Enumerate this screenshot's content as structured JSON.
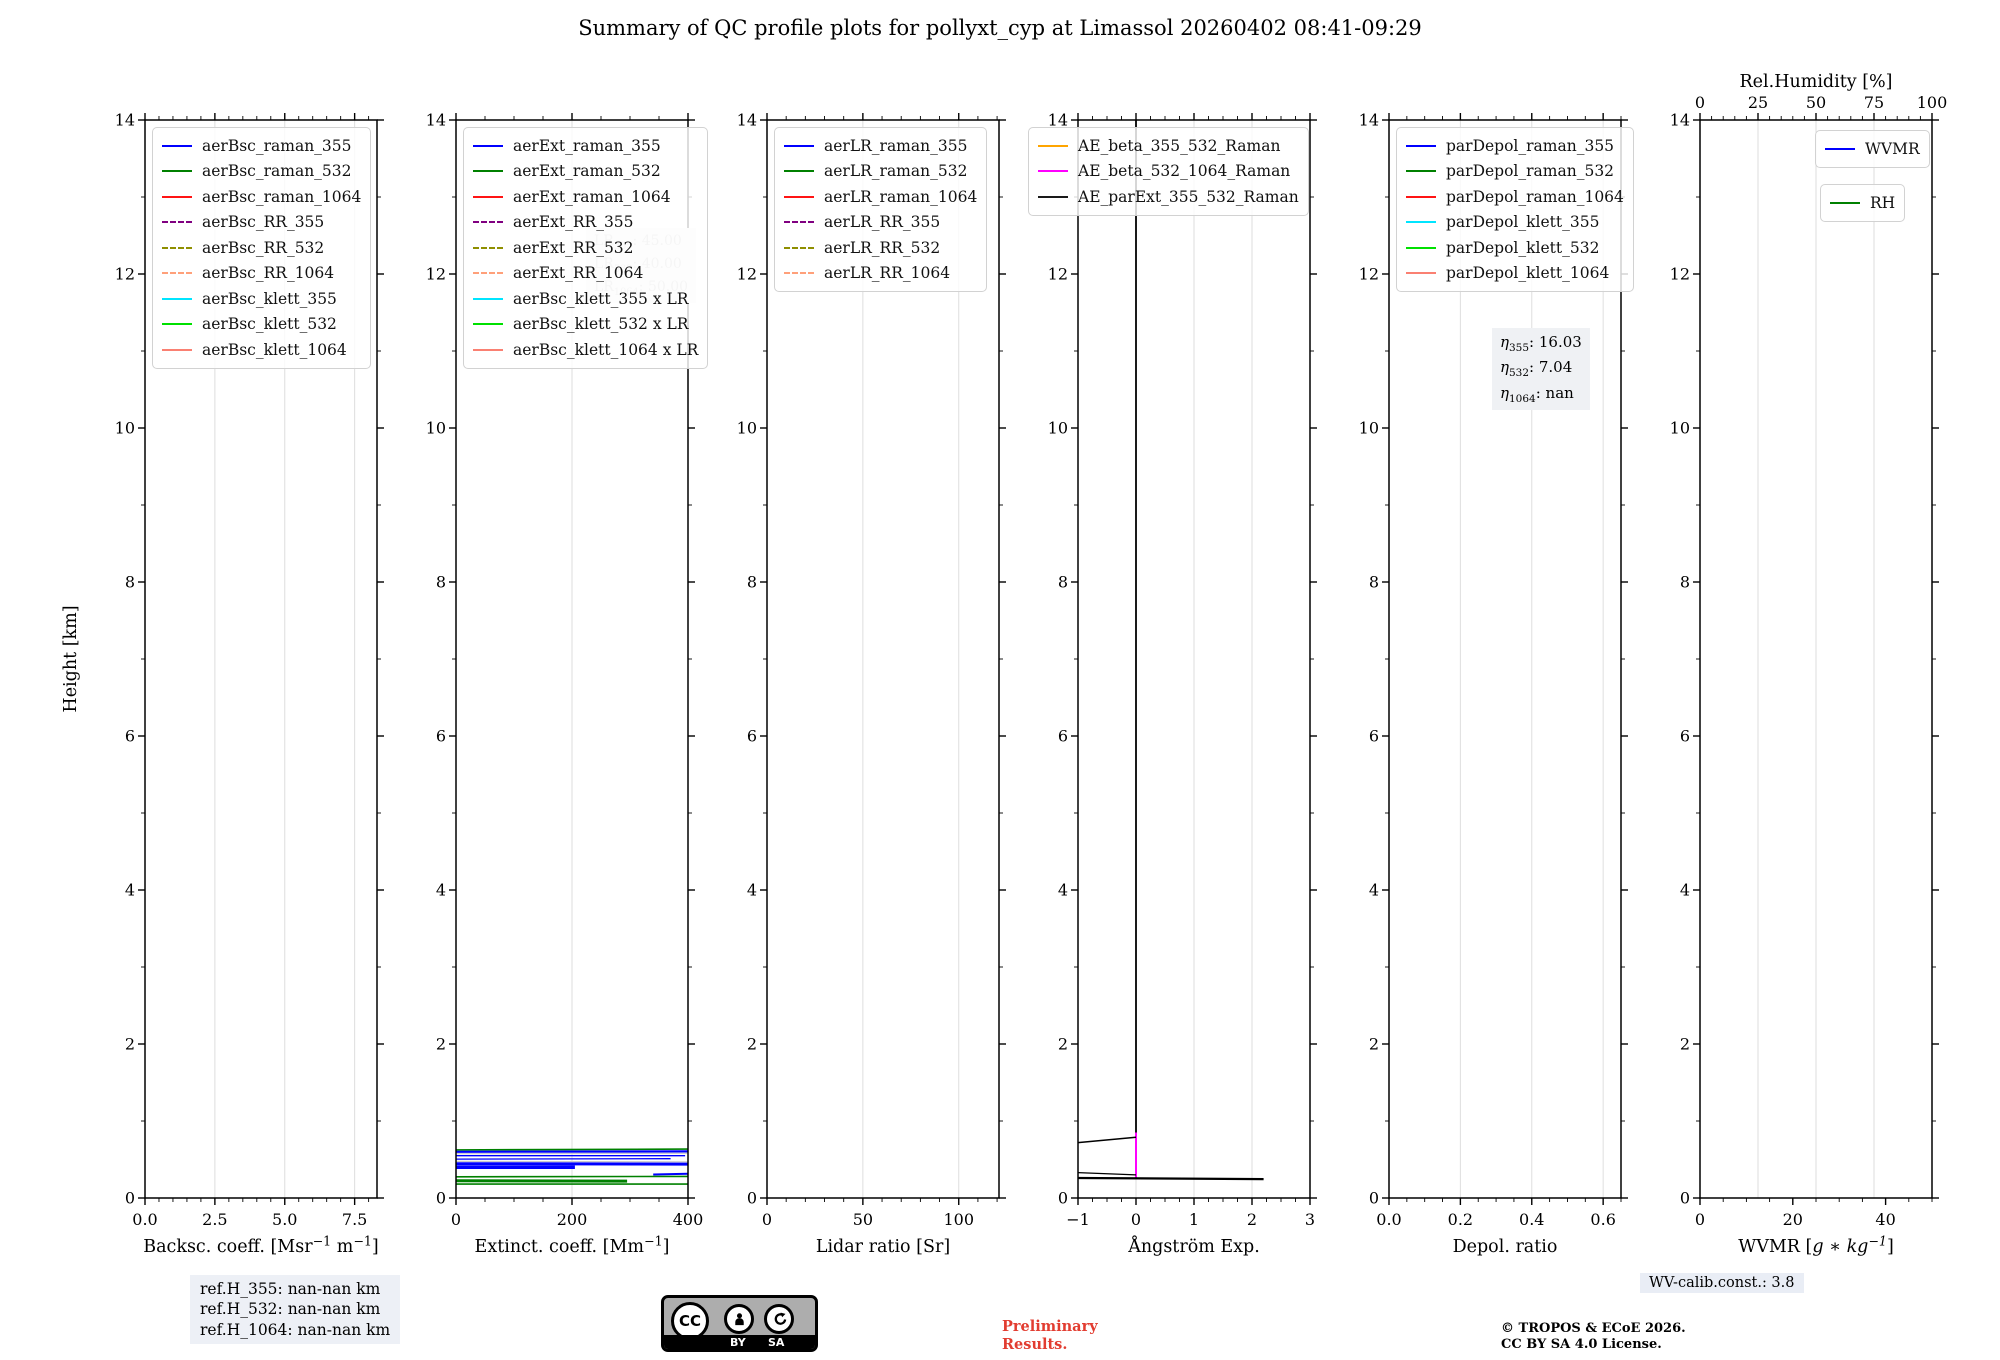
{
  "title": "Summary of QC profile plots for pollyxt_cyp at Limassol 20260402 08:41-09:29",
  "footer": {
    "ref_lines": [
      "ref.H_355: nan-nan km",
      "ref.H_532: nan-nan km",
      "ref.H_1064: nan-nan km"
    ],
    "cc": {
      "cc": "CC",
      "by": "BY",
      "sa": "SA"
    },
    "preliminary": [
      "Preliminary",
      "Results."
    ],
    "copyright": [
      "© TROPOS & ECoE 2026.",
      "CC BY SA 4.0 License."
    ],
    "wv_calib": "WV-calib.const.: 3.8"
  },
  "chart_data": {
    "type": "line",
    "title": "Summary of QC profile plots for pollyxt_cyp at Limassol 20260402 08:41-09:29",
    "ylabel": "Height [km]",
    "y_range": [
      0,
      14
    ],
    "y_ticks": [
      0,
      2,
      4,
      6,
      8,
      10,
      12,
      14
    ],
    "y_minor_step": 1,
    "grid_color": "#dedede",
    "panels": [
      {
        "name": "backscatter",
        "xlabel": [
          {
            "t": "Backsc. coeff. [Msr"
          },
          {
            "t": "−1",
            "sup": true
          },
          {
            "t": " m"
          },
          {
            "t": "−1",
            "sup": true
          },
          {
            "t": "]"
          }
        ],
        "x_range": [
          0,
          8.3
        ],
        "x_ticks": [
          {
            "v": 0,
            "l": "0.0"
          },
          {
            "v": 2.5,
            "l": "2.5"
          },
          {
            "v": 5,
            "l": "5.0"
          },
          {
            "v": 7.5,
            "l": "7.5"
          }
        ],
        "x_minor_step": 0.5,
        "legends": [
          {
            "x": 7,
            "y": 7,
            "entries": [
              {
                "label": "aerBsc_raman_355",
                "color": "#0000ff"
              },
              {
                "label": "aerBsc_raman_532",
                "color": "#008000"
              },
              {
                "label": "aerBsc_raman_1064",
                "color": "#ff1414"
              },
              {
                "label": "aerBsc_RR_355",
                "color": "#800080",
                "dash": true
              },
              {
                "label": "aerBsc_RR_532",
                "color": "#8f8f00",
                "dash": true
              },
              {
                "label": "aerBsc_RR_1064",
                "color": "#ffa07a",
                "dash": true
              },
              {
                "label": "aerBsc_klett_355",
                "color": "#00e5ff"
              },
              {
                "label": "aerBsc_klett_532",
                "color": "#00e000"
              },
              {
                "label": "aerBsc_klett_1064",
                "color": "#fa8072"
              }
            ]
          }
        ],
        "notes": [],
        "series": []
      },
      {
        "name": "extinction",
        "xlabel": [
          {
            "t": "Extinct. coeff. [Mm"
          },
          {
            "t": "−1",
            "sup": true
          },
          {
            "t": "]"
          }
        ],
        "x_range": [
          0,
          400
        ],
        "x_ticks": [
          {
            "v": 0,
            "l": "0"
          },
          {
            "v": 200,
            "l": "200"
          },
          {
            "v": 400,
            "l": "400"
          }
        ],
        "x_minor_step": 50,
        "legends": [
          {
            "x": 7,
            "y": 7,
            "entries": [
              {
                "label": "aerExt_raman_355",
                "color": "#0000ff"
              },
              {
                "label": "aerExt_raman_532",
                "color": "#008000"
              },
              {
                "label": "aerExt_raman_1064",
                "color": "#ff1414"
              },
              {
                "label": "aerExt_RR_355",
                "color": "#800080",
                "dash": true
              },
              {
                "label": "aerExt_RR_532",
                "color": "#8f8f00",
                "dash": true
              },
              {
                "label": "aerExt_RR_1064",
                "color": "#ffa07a",
                "dash": true
              },
              {
                "label": "aerBsc_klett_355 x LR",
                "color": "#00e5ff"
              },
              {
                "label": "aerBsc_klett_532 x LR",
                "color": "#00e000"
              },
              {
                "label": "aerBsc_klett_1064 x LR",
                "color": "#fa8072"
              }
            ]
          }
        ],
        "notes": [
          {
            "name": "lidar-ratio-note",
            "x": 130,
            "y": 108,
            "fs": 14,
            "color": "#c9c9c9",
            "bg": "#f4f4f4",
            "lines": [
              [
                {
                  "t": "LR"
                },
                {
                  "t": "355",
                  "sub": true
                },
                {
                  "t": ": 45.00"
                }
              ],
              [
                {
                  "t": "LR"
                },
                {
                  "t": "532",
                  "sub": true
                },
                {
                  "t": ": 40.00"
                }
              ],
              [
                {
                  "t": "LR"
                },
                {
                  "t": "1064",
                  "sub": true
                },
                {
                  "t": ": 50.00"
                }
              ]
            ]
          }
        ],
        "series": [
          {
            "c": "#c9c9c9",
            "w": 1.2,
            "pts": [
              [
                0,
                0.575
              ],
              [
                400,
                0.58
              ]
            ]
          },
          {
            "c": "#c9c9c9",
            "w": 1.2,
            "pts": [
              [
                0,
                0.475
              ],
              [
                400,
                0.47
              ]
            ]
          },
          {
            "c": "#008000",
            "w": 1.6,
            "pts": [
              [
                0,
                0.625
              ],
              [
                400,
                0.635
              ]
            ]
          },
          {
            "c": "#0000ff",
            "w": 2.2,
            "pts": [
              [
                0,
                0.6
              ],
              [
                400,
                0.605
              ]
            ]
          },
          {
            "c": "#0000ff",
            "w": 1.3,
            "pts": [
              [
                0,
                0.55
              ],
              [
                395,
                0.55
              ]
            ]
          },
          {
            "c": "#0000ff",
            "w": 1.3,
            "pts": [
              [
                0,
                0.505
              ],
              [
                370,
                0.51
              ]
            ]
          },
          {
            "c": "#0000ff",
            "w": 3,
            "pts": [
              [
                0,
                0.445
              ],
              [
                400,
                0.44
              ]
            ]
          },
          {
            "c": "#0000ff",
            "w": 3.5,
            "pts": [
              [
                0,
                0.4
              ],
              [
                205,
                0.4
              ]
            ]
          },
          {
            "c": "#0000ff",
            "w": 2,
            "pts": [
              [
                340,
                0.305
              ],
              [
                400,
                0.315
              ]
            ]
          },
          {
            "c": "#008000",
            "w": 1.6,
            "pts": [
              [
                0,
                0.275
              ],
              [
                400,
                0.28
              ]
            ]
          },
          {
            "c": "#008000",
            "w": 3,
            "pts": [
              [
                0,
                0.225
              ],
              [
                295,
                0.22
              ]
            ]
          },
          {
            "c": "#008000",
            "w": 1.6,
            "pts": [
              [
                0,
                0.18
              ],
              [
                400,
                0.18
              ]
            ]
          }
        ]
      },
      {
        "name": "lidar-ratio",
        "xlabel": [
          {
            "t": "Lidar ratio [Sr]"
          }
        ],
        "x_range": [
          0,
          121
        ],
        "x_ticks": [
          {
            "v": 0,
            "l": "0"
          },
          {
            "v": 50,
            "l": "50"
          },
          {
            "v": 100,
            "l": "100"
          }
        ],
        "x_minor_step": 10,
        "legends": [
          {
            "x": 7,
            "y": 7,
            "entries": [
              {
                "label": "aerLR_raman_355",
                "color": "#0000ff"
              },
              {
                "label": "aerLR_raman_532",
                "color": "#008000"
              },
              {
                "label": "aerLR_raman_1064",
                "color": "#ff1414"
              },
              {
                "label": "aerLR_RR_355",
                "color": "#800080",
                "dash": true
              },
              {
                "label": "aerLR_RR_532",
                "color": "#8f8f00",
                "dash": true
              },
              {
                "label": "aerLR_RR_1064",
                "color": "#ffa07a",
                "dash": true
              }
            ]
          }
        ],
        "notes": [],
        "series": []
      },
      {
        "name": "angstroem",
        "xlabel": [
          {
            "t": "Ångström Exp."
          }
        ],
        "x_range": [
          -1,
          3
        ],
        "x_ticks": [
          {
            "v": -1,
            "l": "−1"
          },
          {
            "v": 0,
            "l": "0"
          },
          {
            "v": 1,
            "l": "1"
          },
          {
            "v": 2,
            "l": "2"
          },
          {
            "v": 3,
            "l": "3"
          }
        ],
        "x_minor_step": 0.25,
        "legends": [
          {
            "x": -50,
            "y": 7,
            "entries": [
              {
                "label": "AE_beta_355_532_Raman",
                "color": "#ffa500"
              },
              {
                "label": "AE_beta_532_1064_Raman",
                "color": "#ff00ff"
              },
              {
                "label": "AE_parExt_355_532_Raman",
                "color": "#1a1a1a"
              }
            ]
          }
        ],
        "notes": [],
        "series": [
          {
            "c": "#000000",
            "w": 1.8,
            "pts": [
              [
                0,
                0.27
              ],
              [
                0,
                14
              ]
            ]
          },
          {
            "c": "#ff00ff",
            "w": 2,
            "pts": [
              [
                0,
                0.27
              ],
              [
                0,
                0.85
              ]
            ]
          },
          {
            "c": "#000000",
            "w": 1.5,
            "pts": [
              [
                -1,
                0.72
              ],
              [
                0,
                0.79
              ]
            ]
          },
          {
            "c": "#000000",
            "w": 1.2,
            "pts": [
              [
                -1,
                0.33
              ],
              [
                0,
                0.3
              ]
            ]
          },
          {
            "c": "#000000",
            "w": 2.2,
            "pts": [
              [
                -1,
                0.26
              ],
              [
                2.2,
                0.245
              ]
            ]
          }
        ]
      },
      {
        "name": "depol-ratio",
        "xlabel": [
          {
            "t": "Depol. ratio"
          }
        ],
        "x_range": [
          0,
          0.65
        ],
        "x_ticks": [
          {
            "v": 0,
            "l": "0.0"
          },
          {
            "v": 0.2,
            "l": "0.2"
          },
          {
            "v": 0.4,
            "l": "0.4"
          },
          {
            "v": 0.6,
            "l": "0.6"
          }
        ],
        "x_minor_step": 0.05,
        "legends": [
          {
            "x": 7,
            "y": 7,
            "entries": [
              {
                "label": "parDepol_raman_355",
                "color": "#0000ff"
              },
              {
                "label": "parDepol_raman_532",
                "color": "#008000"
              },
              {
                "label": "parDepol_raman_1064",
                "color": "#ff1414"
              },
              {
                "label": "parDepol_klett_355",
                "color": "#00e5ff"
              },
              {
                "label": "parDepol_klett_532",
                "color": "#00e000"
              },
              {
                "label": "parDepol_klett_1064",
                "color": "#fa8072"
              }
            ]
          }
        ],
        "notes": [
          {
            "name": "eta-calibration-note",
            "x": 103,
            "y": 208,
            "fs": 15,
            "color": "#000000",
            "bg": "#eff1f4",
            "lines": [
              [
                {
                  "t": "η",
                  "i": true
                },
                {
                  "t": "355",
                  "sub": true
                },
                {
                  "t": ": 16.03"
                }
              ],
              [
                {
                  "t": "η",
                  "i": true
                },
                {
                  "t": "532",
                  "sub": true
                },
                {
                  "t": ": 7.04"
                }
              ],
              [
                {
                  "t": "η",
                  "i": true
                },
                {
                  "t": "1064",
                  "sub": true
                },
                {
                  "t": ": nan"
                }
              ]
            ]
          }
        ],
        "series": []
      },
      {
        "name": "wvmr",
        "xlabel": [
          {
            "t": "WVMR ["
          },
          {
            "t": "g",
            "i": true
          },
          {
            "t": " ∗ "
          },
          {
            "t": "kg",
            "i": true
          },
          {
            "t": "−1",
            "sup": true,
            "i": true
          },
          {
            "t": "]"
          }
        ],
        "x_range": [
          0,
          50
        ],
        "x_ticks": [
          {
            "v": 0,
            "l": "0"
          },
          {
            "v": 20,
            "l": "20"
          },
          {
            "v": 40,
            "l": "40"
          }
        ],
        "x_minor_step": 5,
        "grid": "top",
        "top_axis": {
          "label": [
            {
              "t": "Rel.Humidity [%]"
            }
          ],
          "range": [
            0,
            100
          ],
          "ticks": [
            {
              "v": 0,
              "l": "0"
            },
            {
              "v": 25,
              "l": "25"
            },
            {
              "v": 50,
              "l": "50"
            },
            {
              "v": 75,
              "l": "75"
            },
            {
              "v": 100,
              "l": "100"
            }
          ],
          "minor_step": 5
        },
        "legends": [
          {
            "x": 115,
            "y": 10,
            "entries": [
              {
                "label": "WVMR",
                "color": "#0000ff"
              }
            ]
          },
          {
            "x": 120,
            "y": 64,
            "entries": [
              {
                "label": "RH",
                "color": "#008000"
              }
            ]
          }
        ],
        "notes": [],
        "series": []
      }
    ]
  }
}
